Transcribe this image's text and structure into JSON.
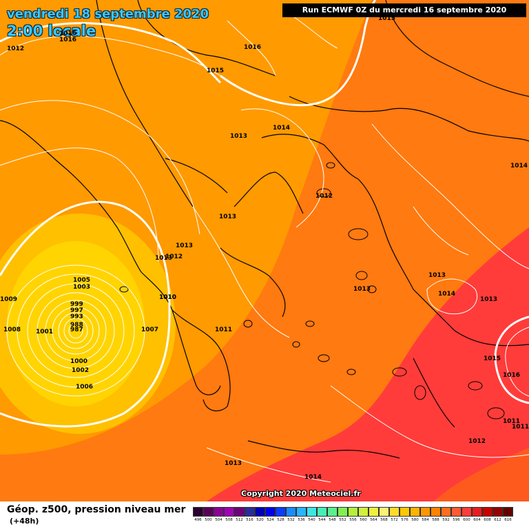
{
  "title": {
    "date": "vendredi 18 septembre 2020",
    "time": "2:00 locale"
  },
  "run_info": "Run ECMWF 0Z du mercredi 16 septembre 2020",
  "copyright": "Copyright 2020 Meteociel.fr",
  "legend": {
    "variable": "Géop. z500, pression niveau mer",
    "step": "(+48h)",
    "scale_values": [
      "496",
      "500",
      "504",
      "508",
      "512",
      "516",
      "520",
      "524",
      "528",
      "532",
      "536",
      "540",
      "544",
      "548",
      "552",
      "556",
      "560",
      "564",
      "568",
      "572",
      "576",
      "580",
      "584",
      "588",
      "592",
      "596",
      "600",
      "604",
      "608",
      "612",
      "616"
    ],
    "scale_colors": [
      "#2a0030",
      "#5a005a",
      "#8c0096",
      "#a000b4",
      "#6e007c",
      "#2c2c96",
      "#0000b4",
      "#0000e6",
      "#0a3cff",
      "#1a8cff",
      "#2ab4ff",
      "#3ce6e6",
      "#46f0b4",
      "#5af08c",
      "#82f050",
      "#b4f03c",
      "#d2f03c",
      "#f0f03c",
      "#fff078",
      "#ffdc28",
      "#ffc800",
      "#ffb400",
      "#ff9600",
      "#ff8200",
      "#ff6e1e",
      "#ff5a32",
      "#ff3c3c",
      "#e61e1e",
      "#c80000",
      "#960000",
      "#640000"
    ]
  },
  "map_colors": {
    "sea_base": "#ff9a00",
    "band_orange_dark": "#ff7a10",
    "band_red": "#ff3c3a",
    "band_red_dark": "#ff5a1e",
    "low_yellow_outer": "#ffc000",
    "low_yellow_inner": "#ffd400",
    "isobar": "#ffffff",
    "coast": "#000000"
  },
  "pressure_labels": [
    "1012",
    "1016",
    "1016",
    "1016",
    "1015",
    "1015",
    "1014",
    "1013",
    "1014",
    "1012",
    "1013",
    "1013",
    "1012",
    "1013",
    "1010",
    "1009",
    "1005",
    "1003",
    "999",
    "997",
    "993",
    "988",
    "987",
    "1008",
    "1001",
    "1007",
    "1010",
    "1011",
    "1013",
    "1013",
    "1014",
    "1013",
    "1015",
    "1016",
    "1011",
    "1011",
    "1012",
    "1000",
    "1002",
    "1006",
    "1013",
    "1014"
  ]
}
